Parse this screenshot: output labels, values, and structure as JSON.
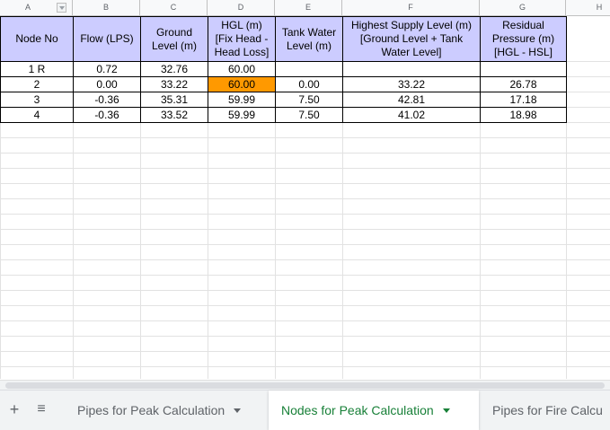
{
  "columns": [
    "A",
    "B",
    "C",
    "D",
    "E",
    "F",
    "G",
    "H"
  ],
  "table": {
    "headers": [
      "Node No",
      "Flow (LPS)",
      "Ground\nLevel (m)",
      "HGL (m)\n[Fix Head -\nHead Loss]",
      "Tank Water\nLevel (m)",
      "Highest Supply Level (m)\n[Ground Level + Tank\nWater Level]",
      "Residual\nPressure (m)\n[HGL - HSL]"
    ],
    "rows": [
      [
        "1 R",
        "0.72",
        "32.76",
        "60.00",
        "",
        "",
        ""
      ],
      [
        "2",
        "0.00",
        "33.22",
        "60.00",
        "0.00",
        "33.22",
        "26.78"
      ],
      [
        "3",
        "-0.36",
        "35.31",
        "59.99",
        "7.50",
        "42.81",
        "17.18"
      ],
      [
        "4",
        "-0.36",
        "33.52",
        "59.99",
        "7.50",
        "41.02",
        "18.98"
      ]
    ]
  },
  "colors": {
    "header_bg": "#ccccff",
    "highlight_bg": "#ff9900",
    "active_tab_text": "#188038"
  },
  "sheet_tabs": [
    {
      "label": "Pipes for Peak Calculation",
      "active": false
    },
    {
      "label": "Nodes for Peak Calculation",
      "active": true
    },
    {
      "label": "Pipes for Fire Calcu",
      "active": false
    }
  ],
  "icons": {
    "add_sheet": "plus-icon",
    "all_sheets": "menu-icon",
    "filter": "dropdown-filter-icon"
  }
}
